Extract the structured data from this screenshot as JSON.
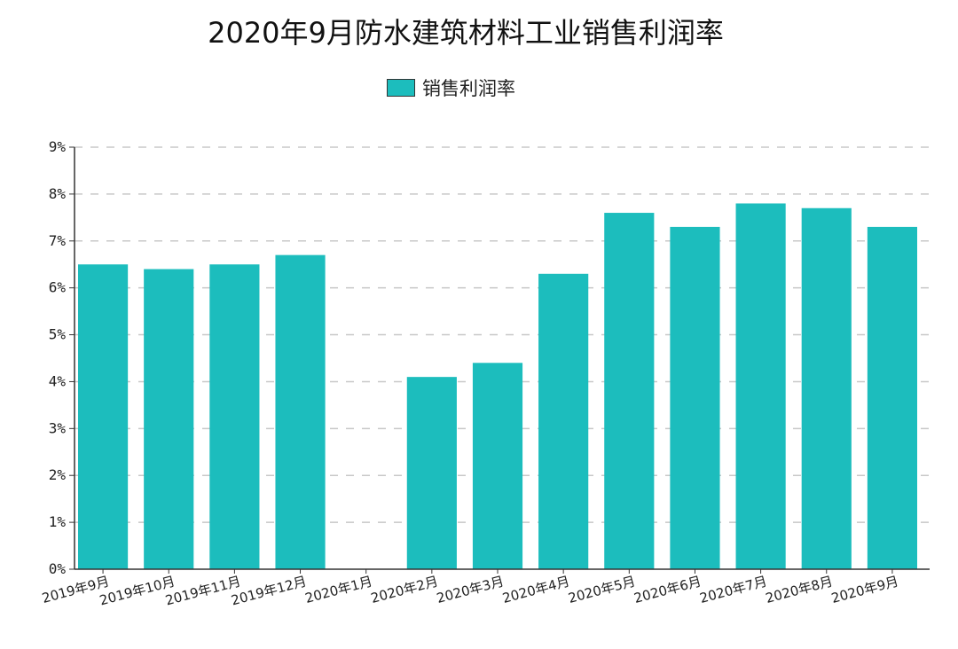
{
  "chart_data": {
    "type": "bar",
    "title": "2020年9月防水建筑材料工业销售利润率",
    "categories": [
      "2019年9月",
      "2019年10月",
      "2019年11月",
      "2019年12月",
      "2020年1月",
      "2020年2月",
      "2020年3月",
      "2020年4月",
      "2020年5月",
      "2020年6月",
      "2020年7月",
      "2020年8月",
      "2020年9月"
    ],
    "series": [
      {
        "name": "销售利润率",
        "values": [
          6.5,
          6.4,
          6.5,
          6.7,
          null,
          4.1,
          4.4,
          6.3,
          7.6,
          7.3,
          7.8,
          7.7,
          7.3
        ],
        "color": "#1cbdbd"
      }
    ],
    "yticks": [
      "0%",
      "1%",
      "2%",
      "3%",
      "4%",
      "5%",
      "6%",
      "7%",
      "8%",
      "9%"
    ],
    "ylim": [
      0,
      9
    ],
    "grid": true,
    "legend": "top-center"
  }
}
